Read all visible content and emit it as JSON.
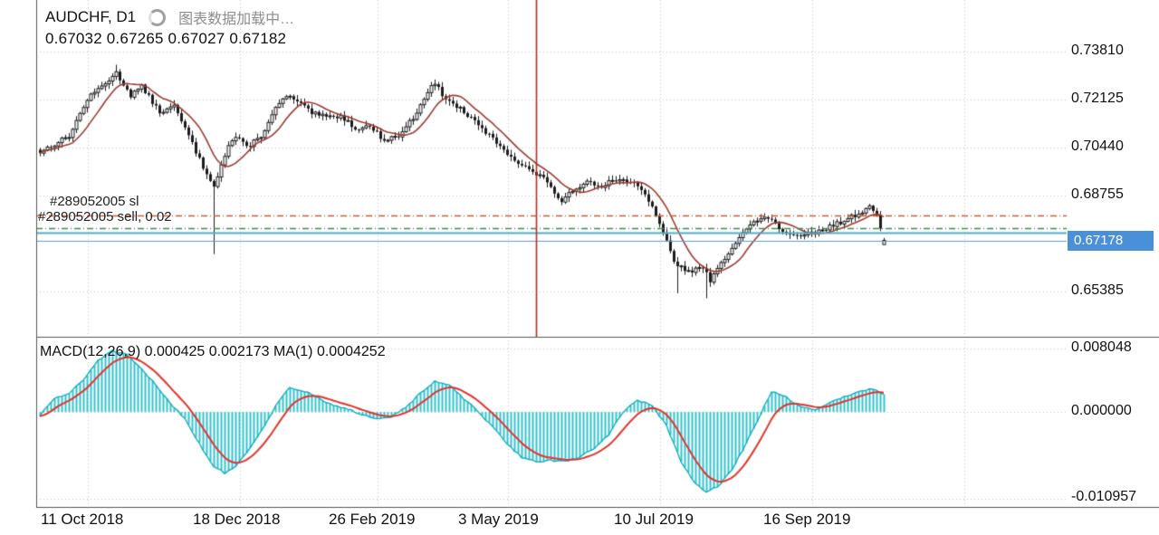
{
  "header": {
    "symbol_timeframe": "AUDCHF, D1",
    "loading_text": "图表数据加载中…",
    "ohlc_text": "0.67032 0.67265 0.67027 0.67182"
  },
  "orders": {
    "sl_label": "#289052005 sl",
    "sell_label": "#289052005 sell, 0.02"
  },
  "indicator_header": "MACD(12,26,9) 0.000425 0.002173 MA(1) 0.0004252",
  "price_axis": {
    "ticks": [
      "0.73810",
      "0.72125",
      "0.70440",
      "0.68755",
      "0.65385"
    ],
    "current_badge": "0.67178"
  },
  "macd_axis": {
    "ticks": [
      "0.008048",
      "0.000000",
      "-0.010957"
    ]
  },
  "colors": {
    "grid": "#c4c4c4",
    "candle_border": "#1b1b1b",
    "candle_up": "#ffffff",
    "candle_down": "#1b1b1b",
    "ma": "#9e3b32",
    "vline": "#a93226",
    "sl_line": "#cf5a2d",
    "sell_line": "#3f8f3f",
    "ask_line": "#57aac6",
    "bid_line": "#5a9bd5",
    "badge_bg": "#4a90d8",
    "histogram": "#35c3d2",
    "macd_line": "#15aebc",
    "signal": "#e0342b"
  },
  "chart_data": {
    "type": "candlestick",
    "symbol": "AUDCHF",
    "timeframe": "D1",
    "title": "AUDCHF, D1 with MACD(12,26,9)",
    "current_bar": {
      "open": 0.67032,
      "high": 0.67265,
      "low": 0.67027,
      "close": 0.67182
    },
    "current_price": 0.67178,
    "price_ticks": [
      0.7381,
      0.72125,
      0.7044,
      0.68755,
      0.65385
    ],
    "ylim_price": [
      0.638,
      0.756
    ],
    "candle_count": 234,
    "ma_period": 10,
    "order_lines": {
      "sl": 0.6806,
      "sell_open": 0.676,
      "ask": 0.6744,
      "bid": 0.67178
    },
    "vertical_line_index": 137,
    "x_labels": [
      "11 Oct 2018",
      "18 Dec 2018",
      "26 Feb 2019",
      "3 May 2019",
      "10 Jul 2019",
      "16 Sep 2019"
    ],
    "close_keypoints": [
      [
        0,
        0.7028
      ],
      [
        8,
        0.7085
      ],
      [
        13,
        0.7213
      ],
      [
        17,
        0.726
      ],
      [
        21,
        0.7305
      ],
      [
        25,
        0.7228
      ],
      [
        28,
        0.7258
      ],
      [
        33,
        0.7168
      ],
      [
        37,
        0.7188
      ],
      [
        41,
        0.7085
      ],
      [
        45,
        0.6975
      ],
      [
        48,
        0.6912
      ],
      [
        52,
        0.705
      ],
      [
        54,
        0.7082
      ],
      [
        57,
        0.7045
      ],
      [
        61,
        0.7085
      ],
      [
        65,
        0.718
      ],
      [
        68,
        0.7226
      ],
      [
        71,
        0.7205
      ],
      [
        75,
        0.7165
      ],
      [
        79,
        0.715
      ],
      [
        83,
        0.7155
      ],
      [
        87,
        0.7112
      ],
      [
        91,
        0.7118
      ],
      [
        95,
        0.707
      ],
      [
        99,
        0.7086
      ],
      [
        103,
        0.7148
      ],
      [
        107,
        0.7242
      ],
      [
        109,
        0.7268
      ],
      [
        112,
        0.7213
      ],
      [
        116,
        0.718
      ],
      [
        120,
        0.7133
      ],
      [
        124,
        0.7086
      ],
      [
        128,
        0.7038
      ],
      [
        132,
        0.699
      ],
      [
        136,
        0.6958
      ],
      [
        140,
        0.6926
      ],
      [
        144,
        0.6848
      ],
      [
        147,
        0.6894
      ],
      [
        151,
        0.6926
      ],
      [
        155,
        0.691
      ],
      [
        159,
        0.6933
      ],
      [
        163,
        0.6926
      ],
      [
        167,
        0.6878
      ],
      [
        171,
        0.6782
      ],
      [
        175,
        0.664
      ],
      [
        179,
        0.6608
      ],
      [
        183,
        0.6623
      ],
      [
        185,
        0.6576
      ],
      [
        189,
        0.6655
      ],
      [
        193,
        0.6734
      ],
      [
        197,
        0.6782
      ],
      [
        201,
        0.6798
      ],
      [
        205,
        0.675
      ],
      [
        209,
        0.6728
      ],
      [
        213,
        0.6741
      ],
      [
        217,
        0.676
      ],
      [
        221,
        0.6782
      ],
      [
        225,
        0.6807
      ],
      [
        229,
        0.6836
      ],
      [
        231,
        0.6798
      ],
      [
        232,
        0.676
      ],
      [
        233,
        0.67182
      ]
    ],
    "wick_overrides": {
      "low": [
        [
          48,
          0.667
        ],
        [
          176,
          0.6532
        ],
        [
          184,
          0.6515
        ]
      ],
      "high": [
        [
          21,
          0.7335
        ],
        [
          109,
          0.7283
        ]
      ]
    },
    "macd": {
      "params": [
        12,
        26,
        9
      ],
      "displayed_values": [
        0.000425,
        0.002173,
        0.0004252
      ],
      "signal_period": 9,
      "ticks": [
        0.008048,
        0.0,
        -0.010957
      ],
      "ylim": [
        -0.012,
        0.0092
      ],
      "values_keypoints": [
        [
          0,
          -0.0005
        ],
        [
          4,
          0.0017
        ],
        [
          8,
          0.0023
        ],
        [
          12,
          0.004
        ],
        [
          16,
          0.0065
        ],
        [
          20,
          0.0077
        ],
        [
          24,
          0.0072
        ],
        [
          28,
          0.0054
        ],
        [
          32,
          0.0034
        ],
        [
          36,
          0.0011
        ],
        [
          40,
          -0.0008
        ],
        [
          44,
          -0.004
        ],
        [
          48,
          -0.0069
        ],
        [
          51,
          -0.0077
        ],
        [
          54,
          -0.0069
        ],
        [
          58,
          -0.0046
        ],
        [
          62,
          -0.0017
        ],
        [
          66,
          0.0014
        ],
        [
          69,
          0.0031
        ],
        [
          73,
          0.0026
        ],
        [
          77,
          0.0017
        ],
        [
          81,
          0.0008
        ],
        [
          85,
          0.0003
        ],
        [
          89,
          -0.0003
        ],
        [
          93,
          -0.0008
        ],
        [
          97,
          -0.0006
        ],
        [
          101,
          0.0006
        ],
        [
          105,
          0.0023
        ],
        [
          109,
          0.0038
        ],
        [
          113,
          0.0034
        ],
        [
          117,
          0.0017
        ],
        [
          121,
          0
        ],
        [
          125,
          -0.0019
        ],
        [
          129,
          -0.004
        ],
        [
          133,
          -0.0057
        ],
        [
          137,
          -0.0063
        ],
        [
          141,
          -0.0061
        ],
        [
          145,
          -0.0063
        ],
        [
          149,
          -0.0057
        ],
        [
          153,
          -0.0046
        ],
        [
          157,
          -0.0029
        ],
        [
          161,
          0
        ],
        [
          165,
          0.0015
        ],
        [
          169,
          0.0008
        ],
        [
          173,
          -0.0017
        ],
        [
          177,
          -0.0063
        ],
        [
          181,
          -0.0091
        ],
        [
          184,
          -0.0101
        ],
        [
          187,
          -0.0095
        ],
        [
          191,
          -0.0074
        ],
        [
          195,
          -0.004
        ],
        [
          199,
          -0.0003
        ],
        [
          202,
          0.0026
        ],
        [
          206,
          0.0019
        ],
        [
          210,
          0.0006
        ],
        [
          214,
          0.0003
        ],
        [
          218,
          0.0011
        ],
        [
          222,
          0.0019
        ],
        [
          226,
          0.0026
        ],
        [
          230,
          0.0029
        ],
        [
          233,
          0.0023
        ]
      ]
    }
  }
}
